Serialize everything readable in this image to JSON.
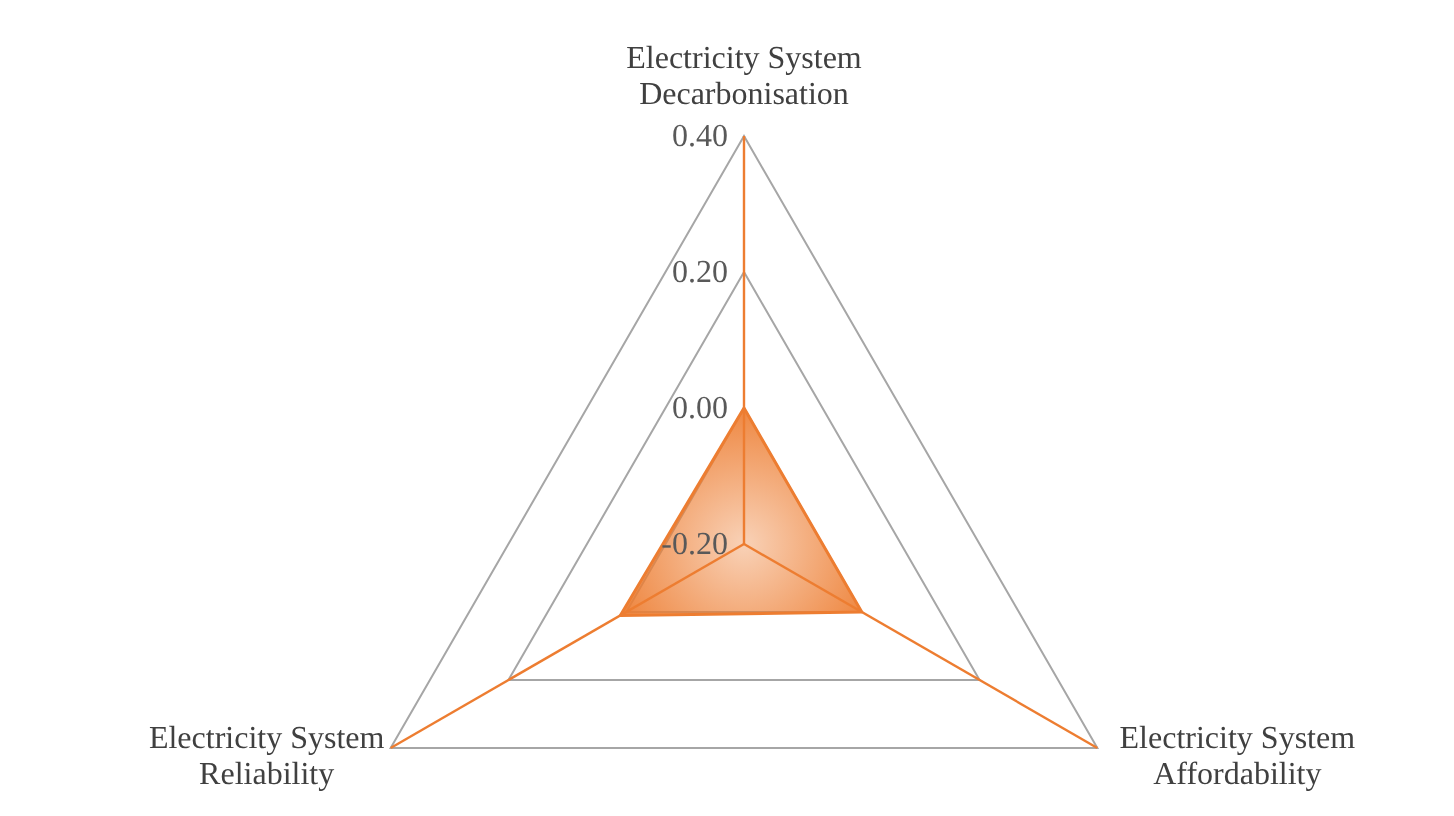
{
  "chart_data": {
    "type": "radar",
    "categories": [
      "Electricity System Decarbonisation",
      "Electricity System Affordability",
      "Electricity System Reliability"
    ],
    "series": [
      {
        "color": "#ed7d31",
        "values": [
          0.0,
          0.0,
          0.01
        ]
      }
    ],
    "ylim": [
      -0.2,
      0.4
    ],
    "yticks": [
      {
        "value": -0.2,
        "label": "-0.20"
      },
      {
        "value": 0,
        "label": "0.00"
      },
      {
        "value": 0.2,
        "label": "0.20"
      },
      {
        "value": 0.4,
        "label": "0.40"
      }
    ],
    "grid": true
  }
}
